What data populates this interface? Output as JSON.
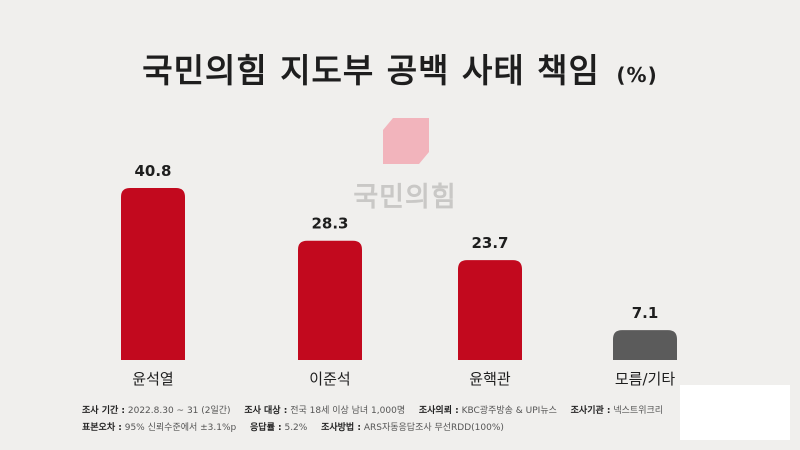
{
  "title": "국민의힘 지도부 공백 사태 책임",
  "title_unit": "(%)",
  "logo_text": "국민의힘",
  "footer": {
    "period_label": "조사 기간 :",
    "period_value": "2022.8.30 ~ 31 (2일간)",
    "target_label": "조사 대상 :",
    "target_value": "전국 18세 이상 남녀 1,000명",
    "client_label": "조사의뢰 :",
    "client_value": "KBC광주방송 & UPI뉴스",
    "agency_label": "조사기관 :",
    "agency_value": "넥스트위크리",
    "error_label": "표본오차 :",
    "error_value": "95% 신뢰수준에서 ±3.1%p",
    "response_label": "응답률 :",
    "response_value": "5.2%",
    "method_label": "조사방법 :",
    "method_value": "ARS자동응답조사 무선RDD(100%)"
  },
  "chart_data": {
    "type": "bar",
    "categories": [
      "윤석열",
      "이준석",
      "윤핵관",
      "모름/기타"
    ],
    "values": [
      40.8,
      28.3,
      23.7,
      7.1
    ],
    "value_labels": [
      "40.8",
      "28.3",
      "23.7",
      "7.1"
    ],
    "colors": [
      "#c2091e",
      "#c2091e",
      "#c2091e",
      "#5b5b5b"
    ],
    "title": "국민의힘 지도부 공백 사태 책임",
    "unit": "%",
    "ylim": [
      0,
      42
    ],
    "grid": false,
    "legend": "none"
  }
}
